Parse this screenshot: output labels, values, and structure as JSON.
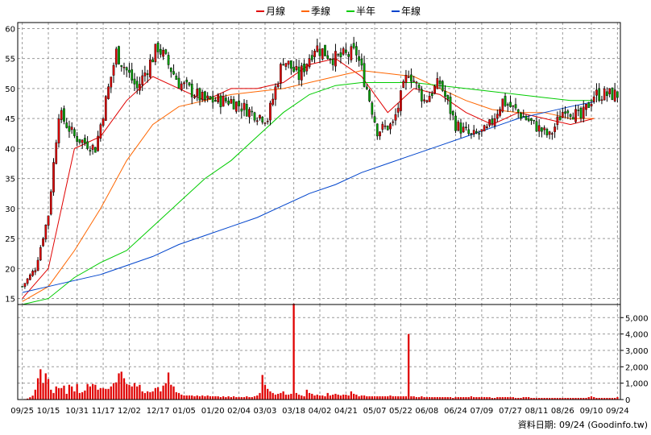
{
  "legend": [
    {
      "label": "月線",
      "color": "#e00000"
    },
    {
      "label": "季線",
      "color": "#ff6600"
    },
    {
      "label": "半年",
      "color": "#00cc00"
    },
    {
      "label": "年線",
      "color": "#0044cc"
    }
  ],
  "footer": "資料日期: 09/24  (Goodinfo.tw)",
  "colors": {
    "up": "#e00000",
    "down": "#00a000",
    "volume": "#e00000",
    "grid": "#9a9a9a"
  },
  "chart_data": [
    {
      "type": "candlestick",
      "title": "",
      "ylim": [
        14,
        61
      ],
      "yticks": [
        15,
        20,
        25,
        30,
        35,
        40,
        45,
        50,
        55,
        60
      ],
      "xticks": [
        "09/25",
        "10/15",
        "10/31",
        "11/17",
        "12/02",
        "12/17",
        "01/05",
        "01/20",
        "02/04",
        "03/03",
        "03/18",
        "04/02",
        "04/21",
        "05/07",
        "05/22",
        "06/08",
        "06/24",
        "07/09",
        "07/27",
        "08/11",
        "08/26",
        "09/10",
        "09/24"
      ],
      "grid": true,
      "legend_position": "top-center",
      "close_anchors": [
        {
          "bar": 0,
          "close": 17
        },
        {
          "bar": 5,
          "close": 20
        },
        {
          "bar": 10,
          "close": 29
        },
        {
          "bar": 14,
          "close": 46
        },
        {
          "bar": 20,
          "close": 42
        },
        {
          "bar": 28,
          "close": 40
        },
        {
          "bar": 36,
          "close": 56
        },
        {
          "bar": 44,
          "close": 50
        },
        {
          "bar": 52,
          "close": 57
        },
        {
          "bar": 60,
          "close": 51
        },
        {
          "bar": 70,
          "close": 48
        },
        {
          "bar": 80,
          "close": 48
        },
        {
          "bar": 88,
          "close": 46
        },
        {
          "bar": 94,
          "close": 45
        },
        {
          "bar": 100,
          "close": 55
        },
        {
          "bar": 106,
          "close": 52
        },
        {
          "bar": 112,
          "close": 57
        },
        {
          "bar": 120,
          "close": 55
        },
        {
          "bar": 128,
          "close": 56
        },
        {
          "bar": 132,
          "close": 50
        },
        {
          "bar": 136,
          "close": 43
        },
        {
          "bar": 142,
          "close": 44
        },
        {
          "bar": 148,
          "close": 53
        },
        {
          "bar": 154,
          "close": 48
        },
        {
          "bar": 160,
          "close": 51
        },
        {
          "bar": 166,
          "close": 44
        },
        {
          "bar": 172,
          "close": 42
        },
        {
          "bar": 178,
          "close": 43
        },
        {
          "bar": 184,
          "close": 48
        },
        {
          "bar": 190,
          "close": 46
        },
        {
          "bar": 196,
          "close": 44
        },
        {
          "bar": 202,
          "close": 42
        },
        {
          "bar": 208,
          "close": 47
        },
        {
          "bar": 214,
          "close": 45
        },
        {
          "bar": 219,
          "close": 49
        }
      ],
      "ma_month": [
        [
          0,
          15
        ],
        [
          10,
          20
        ],
        [
          20,
          40
        ],
        [
          30,
          42
        ],
        [
          40,
          48
        ],
        [
          50,
          52
        ],
        [
          60,
          50
        ],
        [
          70,
          48
        ],
        [
          80,
          50
        ],
        [
          90,
          50
        ],
        [
          100,
          51
        ],
        [
          110,
          54
        ],
        [
          120,
          55
        ],
        [
          130,
          52
        ],
        [
          140,
          46
        ],
        [
          150,
          50
        ],
        [
          160,
          49
        ],
        [
          170,
          46
        ],
        [
          180,
          44
        ],
        [
          190,
          46
        ],
        [
          200,
          45
        ],
        [
          210,
          44
        ],
        [
          219,
          45
        ]
      ],
      "ma_quarter": [
        [
          0,
          14.5
        ],
        [
          10,
          17
        ],
        [
          20,
          23
        ],
        [
          30,
          30
        ],
        [
          40,
          38
        ],
        [
          50,
          44
        ],
        [
          60,
          47
        ],
        [
          70,
          48
        ],
        [
          80,
          49
        ],
        [
          90,
          49.5
        ],
        [
          100,
          50
        ],
        [
          110,
          51
        ],
        [
          120,
          52
        ],
        [
          130,
          53
        ],
        [
          140,
          52.5
        ],
        [
          150,
          52
        ],
        [
          160,
          50
        ],
        [
          170,
          48
        ],
        [
          180,
          46.5
        ],
        [
          190,
          46
        ],
        [
          200,
          46
        ],
        [
          210,
          45
        ],
        [
          219,
          45
        ]
      ],
      "ma_half": [
        [
          0,
          14
        ],
        [
          10,
          15
        ],
        [
          20,
          18.5
        ],
        [
          30,
          21
        ],
        [
          40,
          23
        ],
        [
          50,
          27
        ],
        [
          60,
          31
        ],
        [
          70,
          35
        ],
        [
          80,
          38
        ],
        [
          90,
          42
        ],
        [
          100,
          46
        ],
        [
          110,
          49
        ],
        [
          120,
          50.5
        ],
        [
          130,
          51
        ],
        [
          140,
          51
        ],
        [
          150,
          51
        ],
        [
          160,
          50.5
        ],
        [
          170,
          50
        ],
        [
          180,
          49.5
        ],
        [
          190,
          49
        ],
        [
          200,
          48.5
        ],
        [
          210,
          48
        ],
        [
          219,
          48
        ]
      ],
      "ma_year": [
        [
          0,
          16
        ],
        [
          10,
          17
        ],
        [
          20,
          18
        ],
        [
          30,
          19
        ],
        [
          40,
          20.5
        ],
        [
          50,
          22
        ],
        [
          60,
          24
        ],
        [
          70,
          25.5
        ],
        [
          80,
          27
        ],
        [
          90,
          28.5
        ],
        [
          100,
          30.5
        ],
        [
          110,
          32.5
        ],
        [
          120,
          34
        ],
        [
          130,
          36
        ],
        [
          140,
          37.5
        ],
        [
          150,
          39
        ],
        [
          160,
          40.5
        ],
        [
          170,
          42
        ],
        [
          180,
          43.5
        ],
        [
          190,
          45
        ],
        [
          200,
          46
        ],
        [
          210,
          47
        ],
        [
          219,
          47.8
        ]
      ]
    },
    {
      "type": "bar",
      "title": "",
      "ylim": [
        0,
        5800
      ],
      "yticks": [
        0,
        1000,
        2000,
        3000,
        4000,
        5000
      ],
      "ytick_labels": [
        "0",
        "1,000",
        "2,000",
        "3,000",
        "4,000",
        "5,000"
      ],
      "series": [
        {
          "values": [
            20,
            30,
            60,
            140,
            240,
            600,
            1300,
            1850,
            1000,
            1600,
            1250,
            600,
            400,
            800,
            700,
            700,
            850,
            350,
            900,
            800,
            500,
            950,
            400,
            450,
            550,
            950,
            800,
            950,
            900,
            600,
            700,
            700,
            650,
            650,
            800,
            1000,
            1050,
            1600,
            1700,
            1300,
            950,
            900,
            800,
            1000,
            800,
            900,
            500,
            400,
            500,
            450,
            500,
            700,
            750,
            500,
            850,
            1000,
            1650,
            900,
            800,
            450,
            400,
            300,
            250,
            250,
            250,
            250,
            200,
            250,
            200,
            250,
            200,
            250,
            200,
            200,
            200,
            200,
            150,
            200,
            150,
            200,
            150,
            200,
            150,
            150,
            150,
            150,
            200,
            150,
            150,
            200,
            250,
            400,
            1500,
            900,
            650,
            500,
            400,
            300,
            350,
            400,
            500,
            300,
            300,
            350,
            5850,
            400,
            300,
            250,
            200,
            600,
            400,
            350,
            250,
            300,
            250,
            250,
            200,
            400,
            250,
            300,
            350,
            300,
            250,
            300,
            300,
            250,
            500,
            350,
            300,
            200,
            250,
            250,
            200,
            200,
            200,
            200,
            200,
            200,
            200,
            200,
            200,
            250,
            200,
            200,
            200,
            200,
            200,
            200,
            4000,
            200,
            200,
            150,
            150,
            200,
            150,
            150,
            150,
            150,
            150,
            150,
            150,
            150,
            150,
            150,
            150,
            100,
            150,
            150,
            150,
            150,
            150,
            150,
            200,
            150,
            150,
            150,
            150,
            150,
            150,
            150,
            100,
            100,
            150,
            150,
            150,
            150,
            150,
            150,
            150,
            100,
            100,
            100,
            150,
            150,
            150,
            100,
            100,
            100,
            100,
            100,
            100,
            100,
            100,
            100,
            100,
            100,
            100,
            100,
            100,
            100,
            100,
            100,
            100,
            100,
            100,
            100,
            100,
            150,
            200,
            150,
            100,
            100,
            100,
            100,
            100,
            100,
            100,
            100,
            150
          ]
        }
      ]
    }
  ]
}
